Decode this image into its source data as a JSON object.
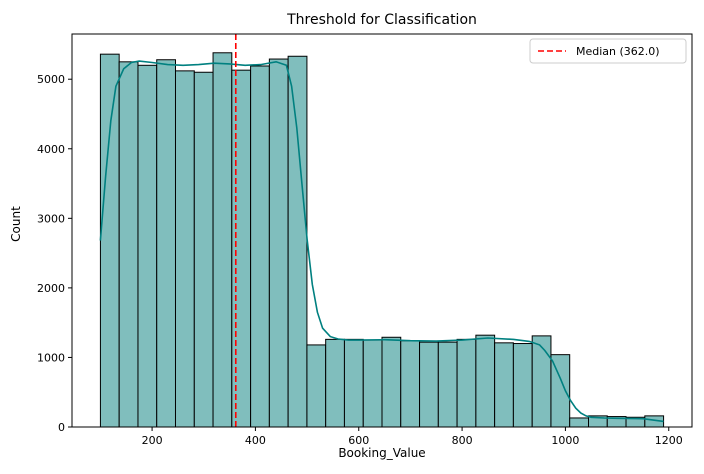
{
  "chart_data": {
    "type": "bar",
    "title": "Threshold for Classification",
    "xlabel": "Booking_Value",
    "ylabel": "Count",
    "xlim": [
      45,
      1245
    ],
    "ylim": [
      0,
      5650
    ],
    "x_ticks": [
      "200",
      "400",
      "600",
      "800",
      "1000",
      "1200"
    ],
    "y_ticks": [
      "0",
      "1000",
      "2000",
      "3000",
      "4000",
      "5000"
    ],
    "bin_edges": [
      100,
      136.3,
      172.7,
      209,
      245.3,
      281.7,
      318,
      354.3,
      390.7,
      427,
      463.3,
      499.7,
      536,
      572.3,
      608.7,
      645,
      681.3,
      717.7,
      754,
      790.3,
      826.7,
      863,
      899.3,
      935.7,
      972,
      1008.3,
      1044.7,
      1081,
      1117.3,
      1153.7,
      1190
    ],
    "values": [
      5360,
      5250,
      5200,
      5280,
      5120,
      5100,
      5380,
      5130,
      5190,
      5290,
      5330,
      1180,
      1260,
      1260,
      1250,
      1290,
      1240,
      1220,
      1220,
      1260,
      1320,
      1210,
      1200,
      1310,
      1040,
      130,
      160,
      150,
      140,
      160
    ],
    "kde": {
      "x": [
        100,
        110,
        120,
        130,
        145,
        160,
        175,
        200,
        230,
        260,
        290,
        320,
        350,
        380,
        410,
        440,
        460,
        470,
        480,
        490,
        500,
        510,
        520,
        530,
        545,
        560,
        580,
        600,
        650,
        700,
        750,
        800,
        850,
        900,
        930,
        950,
        960,
        975,
        990,
        1000,
        1010,
        1020,
        1030,
        1040,
        1050,
        1075,
        1100,
        1150,
        1190
      ],
      "y": [
        2680,
        3600,
        4400,
        4900,
        5150,
        5240,
        5260,
        5240,
        5210,
        5200,
        5210,
        5230,
        5220,
        5200,
        5210,
        5250,
        5200,
        4900,
        4300,
        3500,
        2700,
        2050,
        1650,
        1420,
        1300,
        1265,
        1250,
        1250,
        1255,
        1240,
        1235,
        1250,
        1280,
        1260,
        1230,
        1180,
        1100,
        950,
        700,
        520,
        380,
        270,
        200,
        160,
        140,
        130,
        125,
        120,
        80
      ]
    },
    "median_line": {
      "value": 362.0,
      "label": "Median (362.0)",
      "color": "#ff0000"
    },
    "legend": "top-right",
    "bar_color": "#80bebd",
    "line_color": "#008080",
    "grid": false
  }
}
